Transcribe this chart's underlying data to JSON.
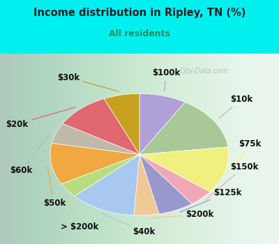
{
  "title": "Income distribution in Ripley, TN (%)",
  "subtitle": "All residents",
  "title_color": "#222222",
  "subtitle_color": "#2e8b57",
  "bg_cyan": "#00f0f0",
  "bg_chart_color": "#d8ede0",
  "watermark": "City-Data.com",
  "labels": [
    "$100k",
    "$10k",
    "$75k",
    "$150k",
    "$125k",
    "$200k",
    "$40k",
    "> $200k",
    "$50k",
    "$60k",
    "$20k",
    "$30k"
  ],
  "values": [
    8.5,
    14.5,
    12.5,
    4.5,
    6.5,
    4.5,
    12.0,
    4.0,
    11.0,
    5.5,
    10.0,
    6.5
  ],
  "colors": [
    "#b0a0d8",
    "#a8c898",
    "#f0f080",
    "#f0a8b8",
    "#9898cc",
    "#f0c898",
    "#a8c8f0",
    "#b8dc80",
    "#f0a840",
    "#c0b8a8",
    "#e06870",
    "#c8a020"
  ],
  "line_colors": [
    "#b0a0d8",
    "#a8c898",
    "#f0f080",
    "#f0a8b8",
    "#9898cc",
    "#f0c898",
    "#a8c8f0",
    "#b8dc80",
    "#f0a840",
    "#c0b8a8",
    "#e06870",
    "#c8a020"
  ],
  "label_fontsize": 8.5,
  "figsize": [
    4.0,
    3.5
  ],
  "dpi": 100
}
